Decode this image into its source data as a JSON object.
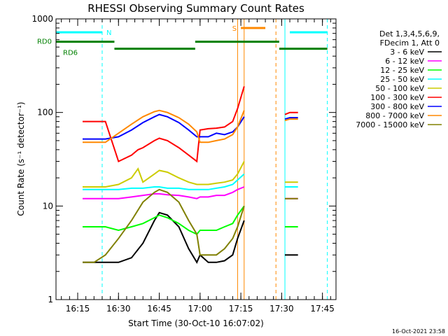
{
  "chart_data": {
    "type": "line",
    "title": "RHESSI Observing Summary Count Rates",
    "xlabel": "Start Time (30-Oct-10 16:07:02)",
    "ylabel": "Count Rate (s⁻¹ detector⁻¹)",
    "yscale": "log",
    "ylim": [
      1,
      1000
    ],
    "xlim": [
      16.117,
      17.833
    ],
    "x_unit": "hours (UT)",
    "x_ticks": [
      {
        "value": 16.25,
        "label": "16:15"
      },
      {
        "value": 16.5,
        "label": "16:30"
      },
      {
        "value": 16.75,
        "label": "16:45"
      },
      {
        "value": 17.0,
        "label": "17:00"
      },
      {
        "value": 17.25,
        "label": "17:15"
      },
      {
        "value": 17.5,
        "label": "17:30"
      },
      {
        "value": 17.75,
        "label": "17:45"
      }
    ],
    "y_ticks": [
      {
        "value": 1,
        "label": "1"
      },
      {
        "value": 10,
        "label": "10"
      },
      {
        "value": 100,
        "label": "100"
      },
      {
        "value": 1000,
        "label": "1000"
      }
    ],
    "legend_header": [
      "Det 1,3,4,5,6,9,",
      "FDecim 1, Att 0"
    ],
    "legend_position": "right",
    "series": [
      {
        "name": "3 - 6 keV",
        "color": "#000000",
        "x": [
          16.28,
          16.35,
          16.42,
          16.5,
          16.58,
          16.65,
          16.72,
          16.75,
          16.8,
          16.87,
          16.93,
          16.98,
          17.0,
          17.05,
          17.1,
          17.15,
          17.2,
          17.23,
          17.27
        ],
        "y": [
          2.5,
          2.5,
          2.5,
          2.5,
          2.8,
          4,
          7,
          8.5,
          8,
          6,
          3.5,
          2.5,
          3,
          2.5,
          2.5,
          2.6,
          3,
          4.5,
          7
        ]
      },
      {
        "name": "6 - 12 keV",
        "color": "#ff00ff",
        "x": [
          16.28,
          16.35,
          16.42,
          16.5,
          16.58,
          16.65,
          16.72,
          16.75,
          16.8,
          16.87,
          16.93,
          16.98,
          17.0,
          17.05,
          17.1,
          17.15,
          17.2,
          17.23,
          17.27
        ],
        "y": [
          12,
          12,
          12,
          12,
          12.5,
          13,
          13.5,
          13.5,
          13.2,
          13,
          12.5,
          12,
          12.5,
          12.5,
          13,
          13,
          14,
          15,
          16
        ]
      },
      {
        "name": "12 - 25 keV",
        "color": "#00ff00",
        "x": [
          16.28,
          16.35,
          16.42,
          16.5,
          16.58,
          16.65,
          16.72,
          16.75,
          16.8,
          16.87,
          16.93,
          16.98,
          17.0,
          17.05,
          17.1,
          17.15,
          17.2,
          17.23,
          17.27
        ],
        "y": [
          6,
          6,
          6,
          5.5,
          6,
          6.5,
          7.5,
          8,
          7.5,
          6.5,
          5.5,
          5,
          5.5,
          5.5,
          5.5,
          6,
          6.5,
          8,
          10
        ]
      },
      {
        "name": "25 - 50 keV",
        "color": "#00ffff",
        "x": [
          16.28,
          16.35,
          16.42,
          16.5,
          16.58,
          16.65,
          16.72,
          16.75,
          16.8,
          16.87,
          16.93,
          16.98,
          17.0,
          17.05,
          17.1,
          17.15,
          17.2,
          17.23,
          17.27
        ],
        "y": [
          15,
          15,
          15,
          15,
          15.5,
          15.5,
          16,
          16,
          15.5,
          15.5,
          15,
          15,
          15,
          15,
          15.5,
          16,
          17,
          19,
          22
        ]
      },
      {
        "name": "50 - 100 keV",
        "color": "#cccc00",
        "x": [
          16.28,
          16.35,
          16.42,
          16.5,
          16.58,
          16.62,
          16.65,
          16.72,
          16.75,
          16.8,
          16.87,
          16.93,
          16.98,
          17.0,
          17.05,
          17.1,
          17.15,
          17.2,
          17.23,
          17.27
        ],
        "y": [
          16,
          16,
          16,
          17,
          20,
          25,
          18,
          22,
          24,
          23,
          20,
          18,
          17,
          17,
          17,
          17.5,
          18,
          19,
          22,
          30
        ]
      },
      {
        "name": "100 - 300 keV",
        "color": "#ff0000",
        "x": [
          16.28,
          16.35,
          16.42,
          16.5,
          16.58,
          16.62,
          16.65,
          16.72,
          16.75,
          16.8,
          16.87,
          16.93,
          16.98,
          17.0,
          17.05,
          17.1,
          17.15,
          17.2,
          17.23,
          17.27
        ],
        "y": [
          80,
          80,
          80,
          30,
          35,
          40,
          42,
          50,
          53,
          50,
          42,
          35,
          30,
          65,
          67,
          68,
          70,
          80,
          110,
          190
        ]
      },
      {
        "name": "300 - 800 keV",
        "color": "#0000ff",
        "x": [
          16.28,
          16.35,
          16.42,
          16.5,
          16.58,
          16.65,
          16.72,
          16.75,
          16.8,
          16.87,
          16.93,
          16.98,
          17.0,
          17.05,
          17.1,
          17.15,
          17.2,
          17.23,
          17.27
        ],
        "y": [
          52,
          52,
          52,
          55,
          65,
          78,
          90,
          95,
          90,
          78,
          65,
          55,
          55,
          55,
          60,
          58,
          62,
          70,
          90
        ]
      },
      {
        "name": "800 - 7000 keV",
        "color": "#ff8800",
        "x": [
          16.28,
          16.35,
          16.42,
          16.5,
          16.58,
          16.65,
          16.72,
          16.75,
          16.8,
          16.87,
          16.93,
          16.98,
          17.0,
          17.05,
          17.1,
          17.15,
          17.2,
          17.23,
          17.27
        ],
        "y": [
          48,
          48,
          48,
          60,
          75,
          90,
          102,
          105,
          100,
          88,
          75,
          62,
          48,
          48,
          50,
          52,
          58,
          70,
          105
        ]
      },
      {
        "name": "7000 - 15000 keV",
        "color": "#808000",
        "x": [
          16.28,
          16.35,
          16.42,
          16.5,
          16.58,
          16.65,
          16.72,
          16.75,
          16.8,
          16.87,
          16.93,
          16.98,
          17.0,
          17.05,
          17.1,
          17.15,
          17.2,
          17.23,
          17.27
        ],
        "y": [
          2.5,
          2.5,
          3,
          4.5,
          7,
          11,
          14,
          15,
          14,
          11,
          7,
          5,
          3,
          3,
          3,
          3.5,
          4.5,
          6,
          10
        ]
      },
      {
        "name": "",
        "color": "#000000",
        "x": [
          17.52,
          17.55,
          17.6
        ],
        "y": [
          3,
          3,
          3
        ]
      },
      {
        "name": "",
        "color": "#ff00ff",
        "x": [
          17.52,
          17.55,
          17.6
        ],
        "y": [
          12,
          12,
          12
        ]
      },
      {
        "name": "",
        "color": "#00ff00",
        "x": [
          17.52,
          17.55,
          17.6
        ],
        "y": [
          6,
          6,
          6
        ]
      },
      {
        "name": "",
        "color": "#00ffff",
        "x": [
          17.52,
          17.55,
          17.6
        ],
        "y": [
          16,
          16,
          16
        ]
      },
      {
        "name": "",
        "color": "#cccc00",
        "x": [
          17.52,
          17.55,
          17.6
        ],
        "y": [
          18,
          18,
          18
        ]
      },
      {
        "name": "",
        "color": "#ff0000",
        "x": [
          17.52,
          17.55,
          17.6
        ],
        "y": [
          95,
          100,
          100
        ]
      },
      {
        "name": "",
        "color": "#0000ff",
        "x": [
          17.52,
          17.55,
          17.6
        ],
        "y": [
          85,
          88,
          88
        ]
      },
      {
        "name": "",
        "color": "#ff8800",
        "x": [
          17.52,
          17.55,
          17.6
        ],
        "y": [
          82,
          85,
          85
        ]
      },
      {
        "name": "",
        "color": "#808000",
        "x": [
          17.52,
          17.55,
          17.6
        ],
        "y": [
          12,
          12,
          12
        ]
      }
    ],
    "state_bars": [
      {
        "label": "N",
        "color": "#00ffff",
        "y": 720,
        "segments": [
          [
            16.117,
            16.4
          ],
          [
            17.55,
            17.78
          ]
        ]
      },
      {
        "label": "RD0",
        "color": "#008000",
        "y": 570,
        "segments": [
          [
            16.117,
            16.475
          ],
          [
            16.97,
            17.485
          ]
        ]
      },
      {
        "label": "RD6",
        "color": "#008000",
        "y": 480,
        "segments": [
          [
            16.475,
            16.97
          ],
          [
            17.485,
            17.78
          ]
        ]
      },
      {
        "label": "S",
        "color": "#ff8800",
        "y": 800,
        "segments": [
          [
            17.25,
            17.4
          ]
        ]
      }
    ],
    "vertical_markers": [
      {
        "x": 16.117,
        "color": "#00ffff",
        "style": "solid"
      },
      {
        "x": 16.4,
        "color": "#00ffff",
        "style": "dashed"
      },
      {
        "x": 17.23,
        "color": "#ff8800",
        "style": "solid"
      },
      {
        "x": 17.27,
        "color": "#ff8800",
        "style": "solid"
      },
      {
        "x": 17.465,
        "color": "#ff8800",
        "style": "dashed"
      },
      {
        "x": 17.52,
        "color": "#00ffff",
        "style": "solid"
      },
      {
        "x": 17.78,
        "color": "#00ffff",
        "style": "dashed"
      }
    ]
  },
  "timestamp": "16-Oct-2021 23:58"
}
